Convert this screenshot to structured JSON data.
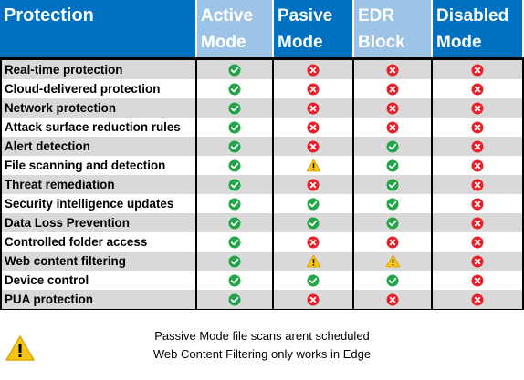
{
  "colors": {
    "header_blue": "#0070c0",
    "header_light": "#9dc3e6",
    "row_gray": "#d9d9d9",
    "check_green": "#22a447",
    "cross_red": "#e8202a",
    "warn_yellow": "#f5c518"
  },
  "header": {
    "feature_label": "Protection",
    "modes": [
      "Active\nMode",
      "Pasive\nMode",
      "EDR\nBlock",
      "Disabled\nMode"
    ]
  },
  "rows": [
    {
      "name": "Real-time protection",
      "status": [
        "check",
        "cross",
        "cross",
        "cross"
      ]
    },
    {
      "name": "Cloud-delivered protection",
      "status": [
        "check",
        "cross",
        "cross",
        "cross"
      ]
    },
    {
      "name": "Network protection",
      "status": [
        "check",
        "cross",
        "cross",
        "cross"
      ]
    },
    {
      "name": "Attack surface reduction rules",
      "status": [
        "check",
        "cross",
        "cross",
        "cross"
      ]
    },
    {
      "name": "Alert detection",
      "status": [
        "check",
        "cross",
        "check",
        "cross"
      ]
    },
    {
      "name": "File scanning and detection",
      "status": [
        "check",
        "warn",
        "check",
        "cross"
      ]
    },
    {
      "name": "Threat remediation",
      "status": [
        "check",
        "cross",
        "check",
        "cross"
      ]
    },
    {
      "name": "Security intelligence updates",
      "status": [
        "check",
        "check",
        "check",
        "cross"
      ]
    },
    {
      "name": "Data Loss Prevention",
      "status": [
        "check",
        "check",
        "check",
        "cross"
      ]
    },
    {
      "name": "Controlled folder access",
      "status": [
        "check",
        "cross",
        "cross",
        "cross"
      ]
    },
    {
      "name": "Web content filtering",
      "status": [
        "check",
        "warn",
        "warn",
        "cross"
      ]
    },
    {
      "name": "Device control",
      "status": [
        "check",
        "check",
        "check",
        "cross"
      ]
    },
    {
      "name": "PUA protection",
      "status": [
        "check",
        "cross",
        "cross",
        "cross"
      ]
    }
  ],
  "legend": {
    "icon": "warning-icon",
    "lines": [
      "Passive Mode file scans arent scheduled",
      "Web Content Filtering only works in Edge"
    ]
  }
}
